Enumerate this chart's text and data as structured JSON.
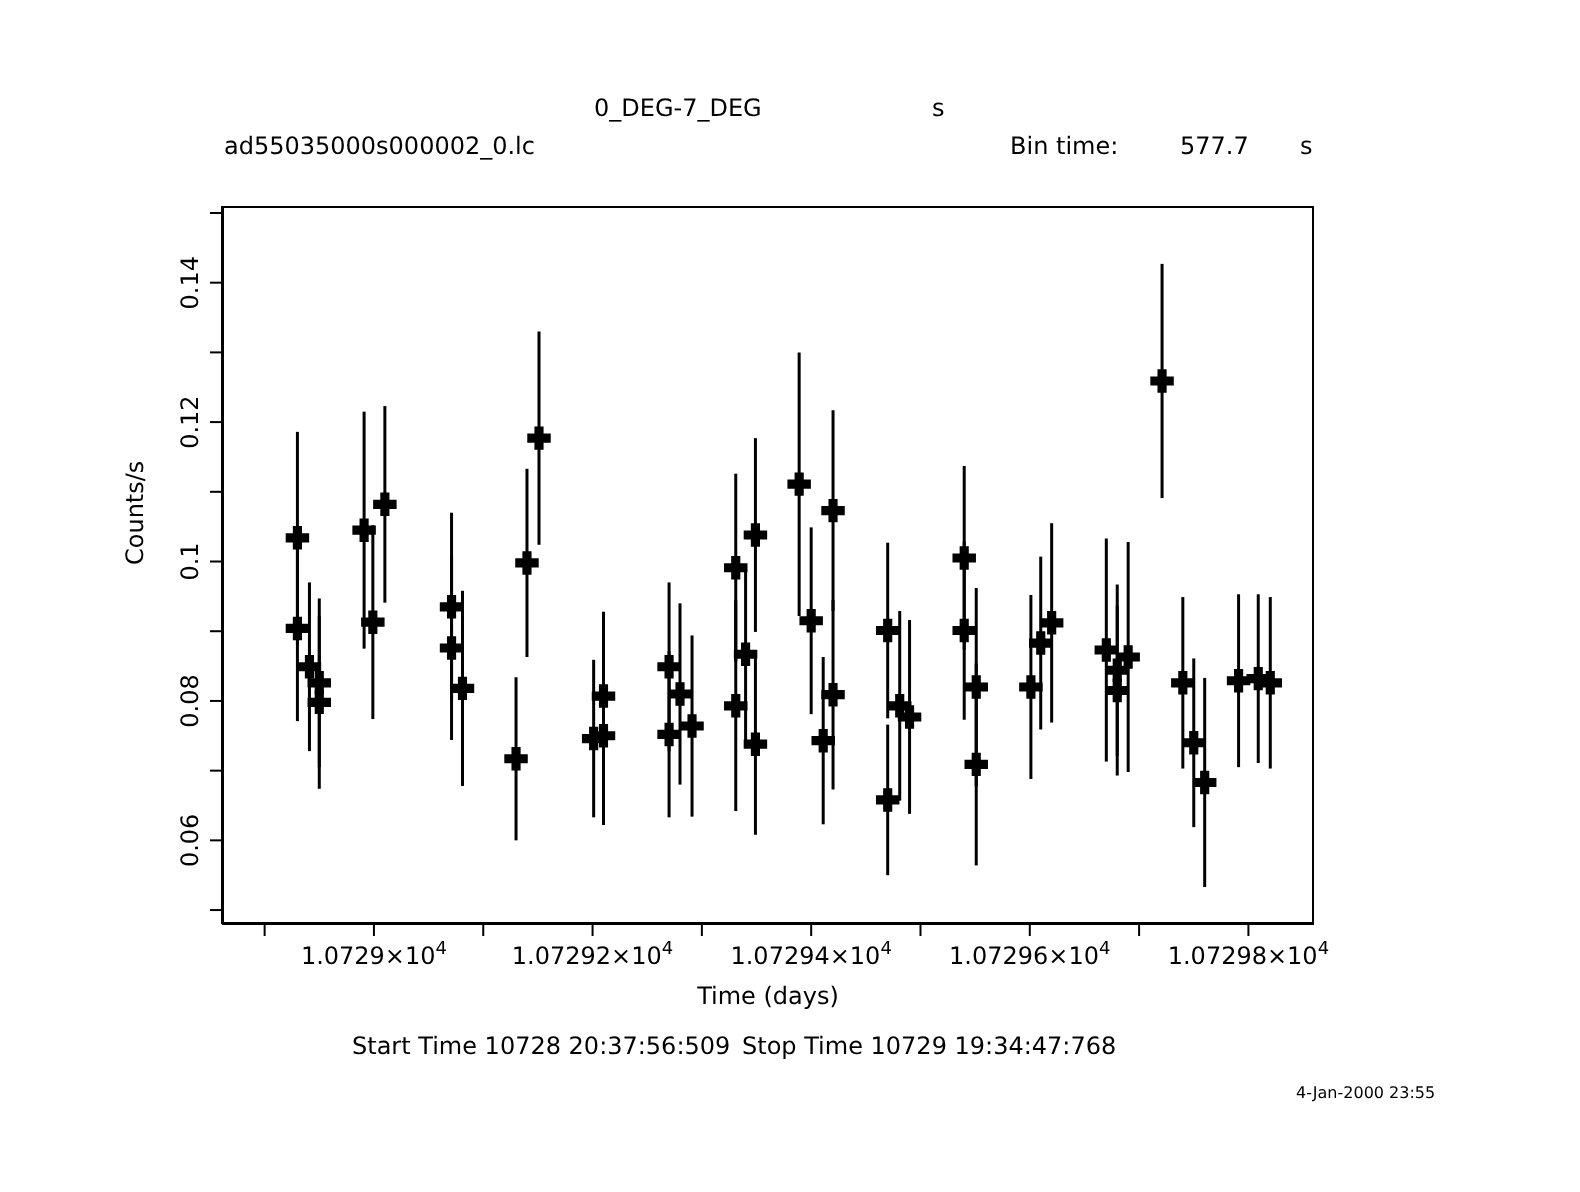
{
  "chart_data": {
    "type": "scatter",
    "title": "0_DEG-7_DEG",
    "subtitle": "ad55035000s000002_0.lc",
    "xlabel": "Time (days)",
    "ylabel": "Counts/s",
    "annotations": [
      "s",
      "Bin time:",
      "577.7",
      "s",
      "Start Time 10728 20:37:56:509",
      "Stop Time 10729 19:34:47:768",
      "4-Jan-2000 23:55"
    ],
    "xlim": [
      10728.861,
      10729.86
    ],
    "ylim": [
      0.048,
      0.151
    ],
    "xticks": [
      {
        "value": 10728.9,
        "label": null
      },
      {
        "value": 10729,
        "label": "1.0729×10$^{4}$"
      },
      {
        "value": 10729.1,
        "label": null
      },
      {
        "value": 10729.2,
        "label": "1.07292×10$^{4}$"
      },
      {
        "value": 10729.3,
        "label": null
      },
      {
        "value": 10729.4,
        "label": "1.07294×10$^{4}$"
      },
      {
        "value": 10729.5,
        "label": null
      },
      {
        "value": 10729.6,
        "label": "1.07296×10$^{4}$"
      },
      {
        "value": 10729.7,
        "label": null
      },
      {
        "value": 10729.8,
        "label": "1.07298×10$^{4}$"
      }
    ],
    "yticks": [
      {
        "value": 0.05,
        "label": null
      },
      0.06,
      {
        "value": 0.07,
        "label": null
      },
      0.08,
      {
        "value": 0.09,
        "label": null
      },
      0.1,
      {
        "value": 0.11,
        "label": null
      },
      0.12,
      {
        "value": 0.13,
        "label": null
      },
      0.14,
      {
        "value": 0.15,
        "label": null
      }
    ],
    "grid": false,
    "legend": false,
    "marker": "cross",
    "series": [
      {
        "color": "#000000",
        "x": [
          10728.93,
          10728.93,
          10728.941,
          10728.95,
          10728.95,
          10728.991,
          10728.999,
          10729.01,
          10729.071,
          10729.071,
          10729.081,
          10729.13,
          10729.14,
          10729.151,
          10729.201,
          10729.21,
          10729.21,
          10729.27,
          10729.27,
          10729.28,
          10729.291,
          10729.331,
          10729.331,
          10729.34,
          10729.349,
          10729.349,
          10729.389,
          10729.4,
          10729.411,
          10729.42,
          10729.42,
          10729.47,
          10729.47,
          10729.481,
          10729.49,
          10729.54,
          10729.54,
          10729.551,
          10729.551,
          10729.601,
          10729.61,
          10729.62,
          10729.67,
          10729.68,
          10729.68,
          10729.69,
          10729.721,
          10729.74,
          10729.75,
          10729.76,
          10729.791,
          10729.809,
          10729.82
        ],
        "values": [
          0.1034,
          0.0904,
          0.0849,
          0.0826,
          0.0798,
          0.1045,
          0.0913,
          0.1082,
          0.0935,
          0.0876,
          0.0818,
          0.0717,
          0.0998,
          0.1177,
          0.0746,
          0.0807,
          0.075,
          0.0849,
          0.0752,
          0.081,
          0.0764,
          0.0991,
          0.0793,
          0.0867,
          0.1038,
          0.0738,
          0.1111,
          0.0915,
          0.0743,
          0.1073,
          0.0809,
          0.0901,
          0.0658,
          0.0793,
          0.0777,
          0.1005,
          0.0901,
          0.082,
          0.0709,
          0.082,
          0.0883,
          0.0912,
          0.0873,
          0.0844,
          0.0815,
          0.0863,
          0.1259,
          0.0826,
          0.074,
          0.0683,
          0.0829,
          0.0832,
          0.0826
        ],
        "errors": [
          0.0152,
          0.0133,
          0.0121,
          0.0121,
          0.0124,
          0.017,
          0.0139,
          0.0141,
          0.0135,
          0.0132,
          0.014,
          0.0117,
          0.0135,
          0.0153,
          0.0113,
          0.0121,
          0.0128,
          0.0121,
          0.0119,
          0.013,
          0.013,
          0.0135,
          0.0151,
          0.0123,
          0.0139,
          0.013,
          0.0189,
          0.0134,
          0.012,
          0.0144,
          0.0136,
          0.0126,
          0.0108,
          0.0136,
          0.0139,
          0.0132,
          0.0128,
          0.0142,
          0.0145,
          0.0132,
          0.0124,
          0.0143,
          0.016,
          0.0123,
          0.0122,
          0.0165,
          0.0168,
          0.0123,
          0.0121,
          0.015,
          0.0124,
          0.0121,
          0.0123
        ]
      }
    ]
  }
}
